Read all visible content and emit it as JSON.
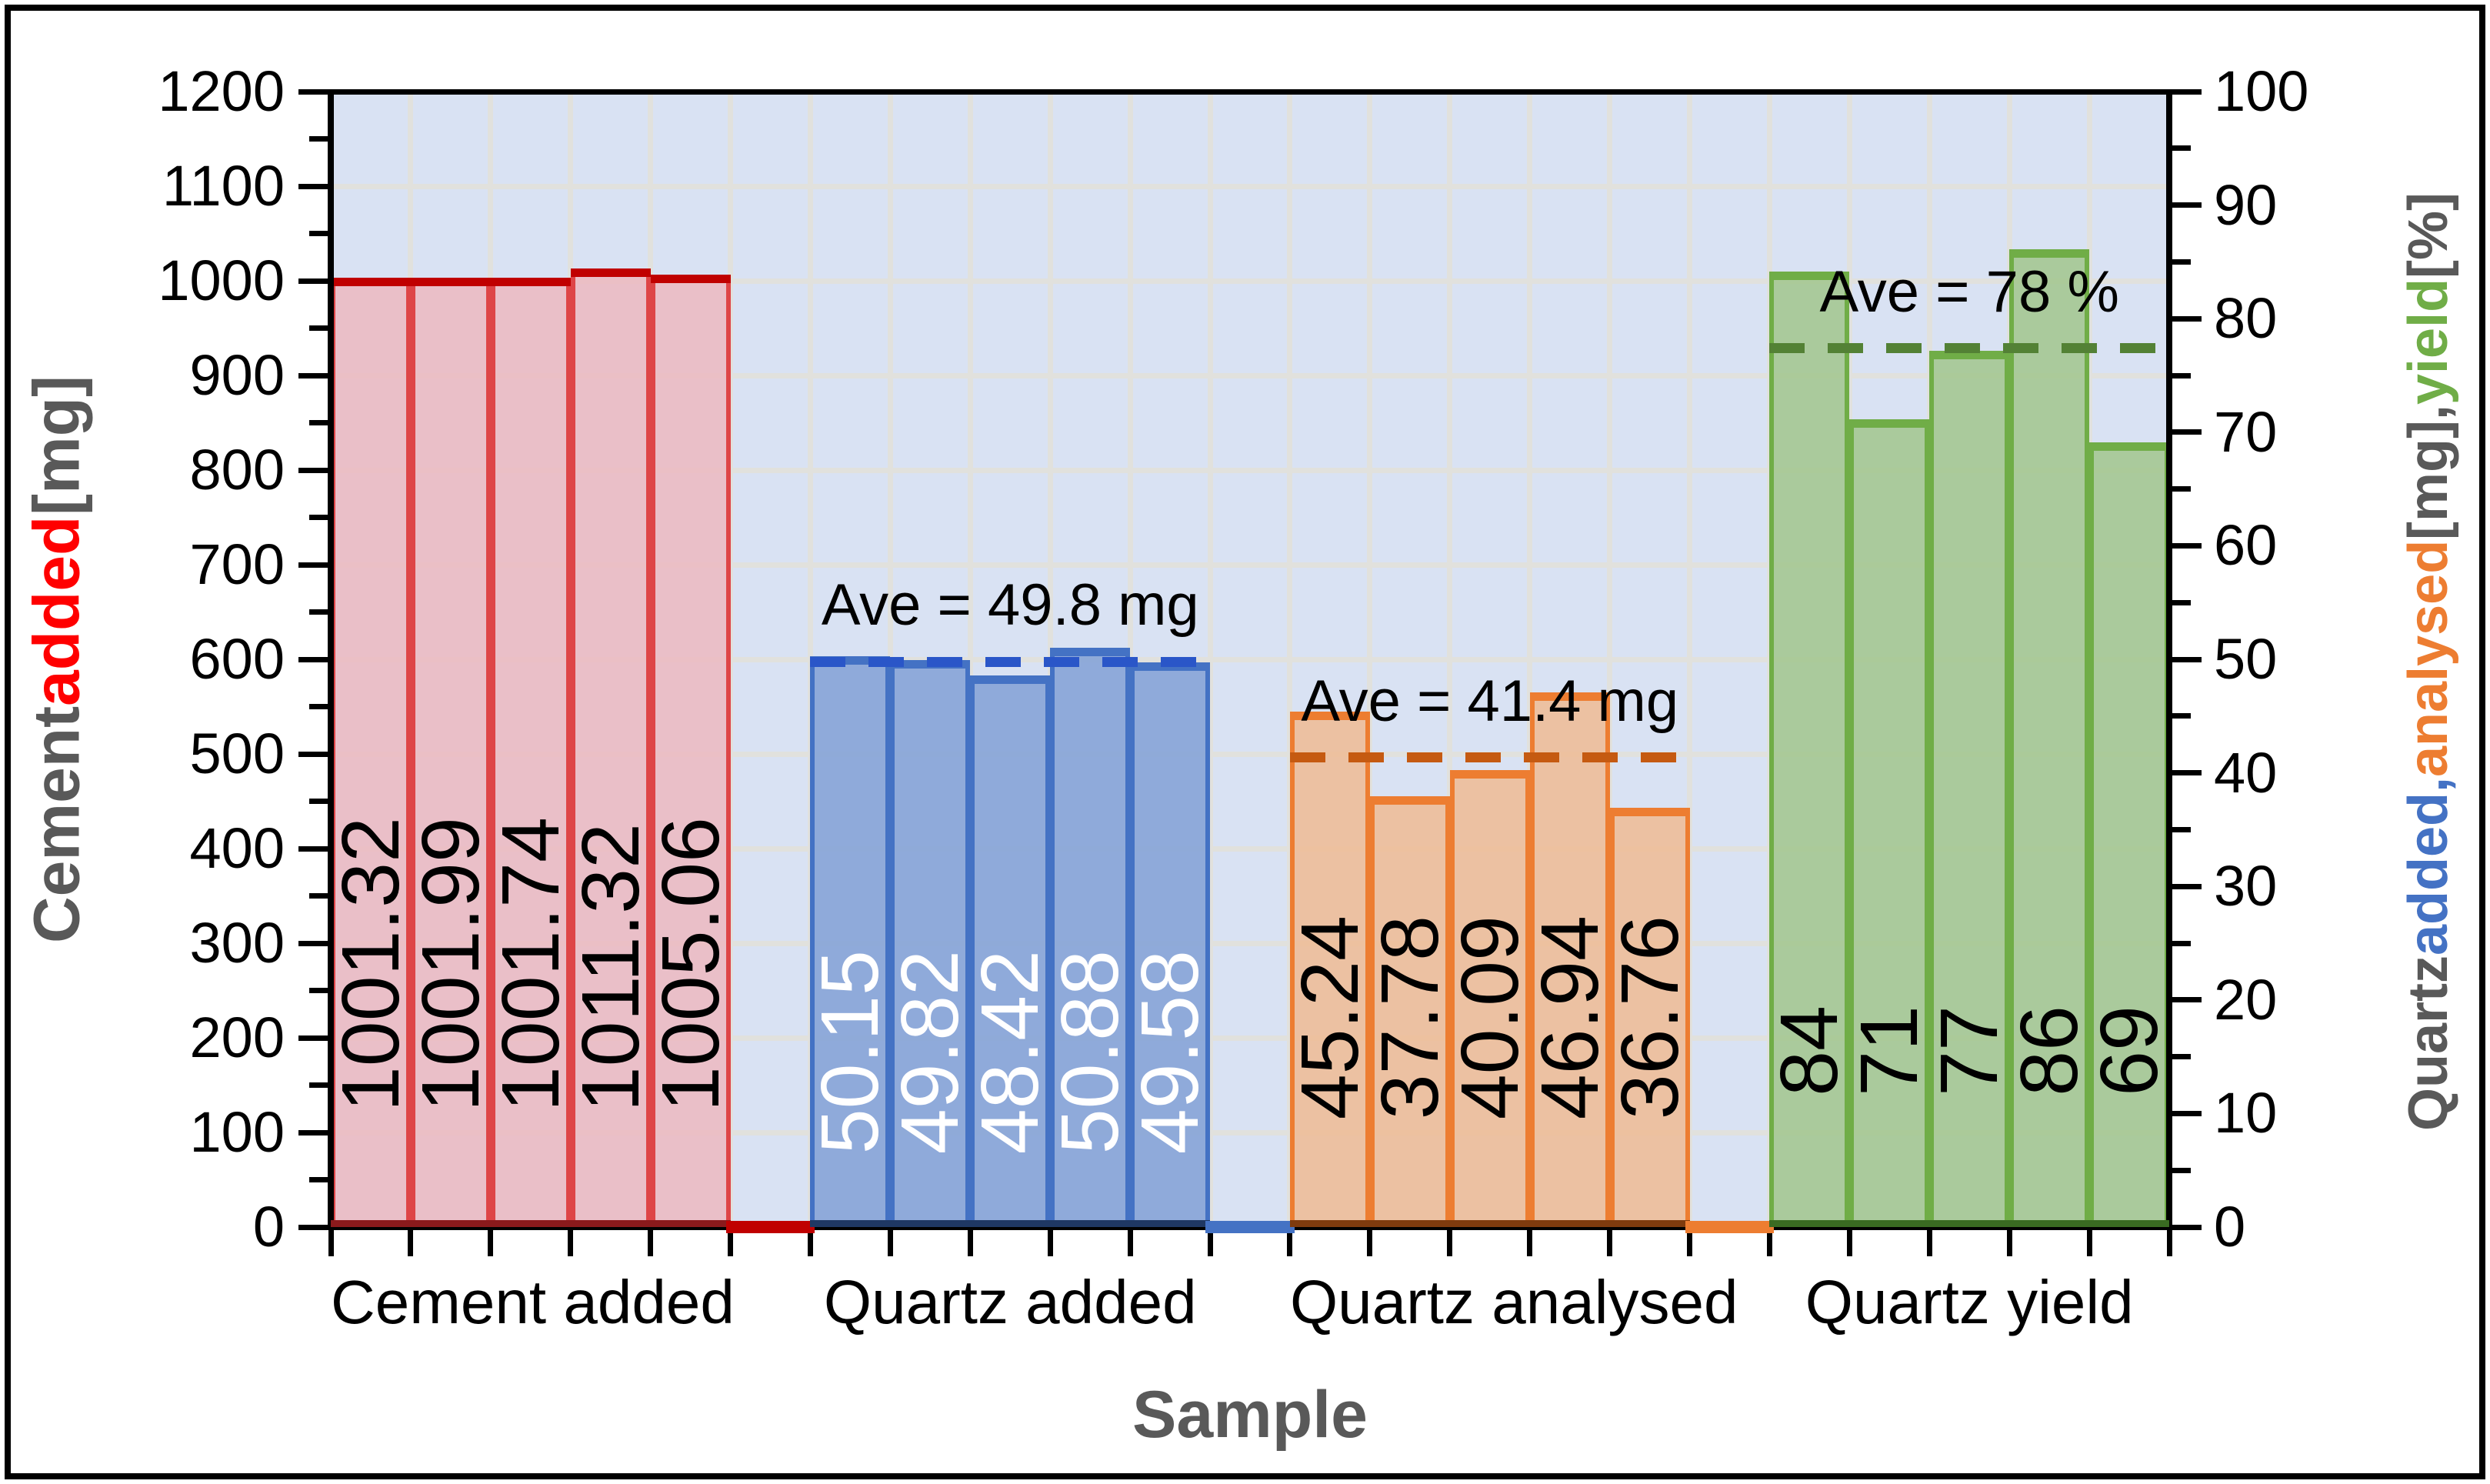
{
  "window": {
    "background": "#FFFFFF",
    "border_color": "#000000"
  },
  "chart_data": {
    "type": "bar",
    "plot": {
      "background": "#D9E2F3",
      "grid_color": "#E1E1DD",
      "grid": "on"
    },
    "x_axis": {
      "title": "Sample",
      "title_color": "#595959"
    },
    "left_axis": {
      "min": 0,
      "max": 1200,
      "major_step": 100,
      "minor_step": 50,
      "tick_labels": [
        "0",
        "100",
        "200",
        "300",
        "400",
        "500",
        "600",
        "700",
        "800",
        "900",
        "1000",
        "1100",
        "1200"
      ],
      "title_parts": [
        {
          "text": "Cement ",
          "color": "#595959"
        },
        {
          "text": "added",
          "color": "#FF0000"
        },
        {
          "text": " [mg]",
          "color": "#595959"
        }
      ]
    },
    "right_axis": {
      "min": 0,
      "max": 100,
      "major_step": 10,
      "minor_step": 5,
      "tick_labels": [
        "0",
        "10",
        "20",
        "30",
        "40",
        "50",
        "60",
        "70",
        "80",
        "90",
        "100"
      ],
      "title_parts": [
        {
          "text": "Quartz ",
          "color": "#595959"
        },
        {
          "text": "added,",
          "color": "#4472C4"
        },
        {
          "text": " ",
          "color": "#595959"
        },
        {
          "text": "analysed",
          "color": "#ED7D31"
        },
        {
          "text": " [mg], ",
          "color": "#595959"
        },
        {
          "text": "yield",
          "color": "#70AD47"
        },
        {
          "text": " [%]",
          "color": "#595959"
        }
      ]
    },
    "groups": [
      {
        "category": "Cement added",
        "axis": "left",
        "values": [
          1001.32,
          1001.99,
          1001.74,
          1011.32,
          1005.06
        ],
        "labels": [
          "1001.32",
          "1001.99",
          "1001.74",
          "1011.32",
          "1005.06"
        ],
        "label_color": "#000000",
        "label_offset": 150,
        "fill": "rgba(236,186,193,0.88)",
        "border": "#DE4547",
        "line": "#C00000",
        "base_line": "#8B1A1C",
        "average": null
      },
      {
        "category": "Quartz added",
        "axis": "right",
        "values": [
          50.15,
          49.82,
          48.42,
          50.88,
          49.58
        ],
        "labels": [
          "50.15",
          "49.82",
          "48.42",
          "50.88",
          "49.58"
        ],
        "label_color": "#FFFFFF",
        "label_offset": 95,
        "fill": "rgba(134,164,215,0.9)",
        "border": "#4472C4",
        "line": "#4472C4",
        "base_line": "#1F3864",
        "average": {
          "label": "Ave = 49.8 mg",
          "dash_color": "#2A56C8"
        }
      },
      {
        "category": "Quartz analysed",
        "axis": "right",
        "values": [
          45.24,
          37.78,
          40.09,
          46.94,
          36.76
        ],
        "labels": [
          "45.24",
          "37.78",
          "40.09",
          "46.94",
          "36.76"
        ],
        "label_color": "#000000",
        "label_offset": 140,
        "fill": "rgba(238,188,150,0.88)",
        "border": "#ED7D31",
        "line": "#ED7D31",
        "base_line": "#7F3B0E",
        "average": {
          "label": "Ave = 41.4 mg",
          "dash_color": "#C55A11"
        }
      },
      {
        "category": "Quartz yield",
        "axis": "right",
        "values": [
          84,
          71,
          77,
          86,
          69
        ],
        "labels": [
          "84",
          "71",
          "77",
          "86",
          "69"
        ],
        "label_color": "#000000",
        "label_offset": 170,
        "fill": "rgba(163,198,143,0.88)",
        "border": "#70AD47",
        "line": "#70AD47",
        "base_line": "#3A6B22",
        "average": {
          "label": "Ave = 78 %",
          "dash_color": "#538135"
        }
      }
    ]
  }
}
